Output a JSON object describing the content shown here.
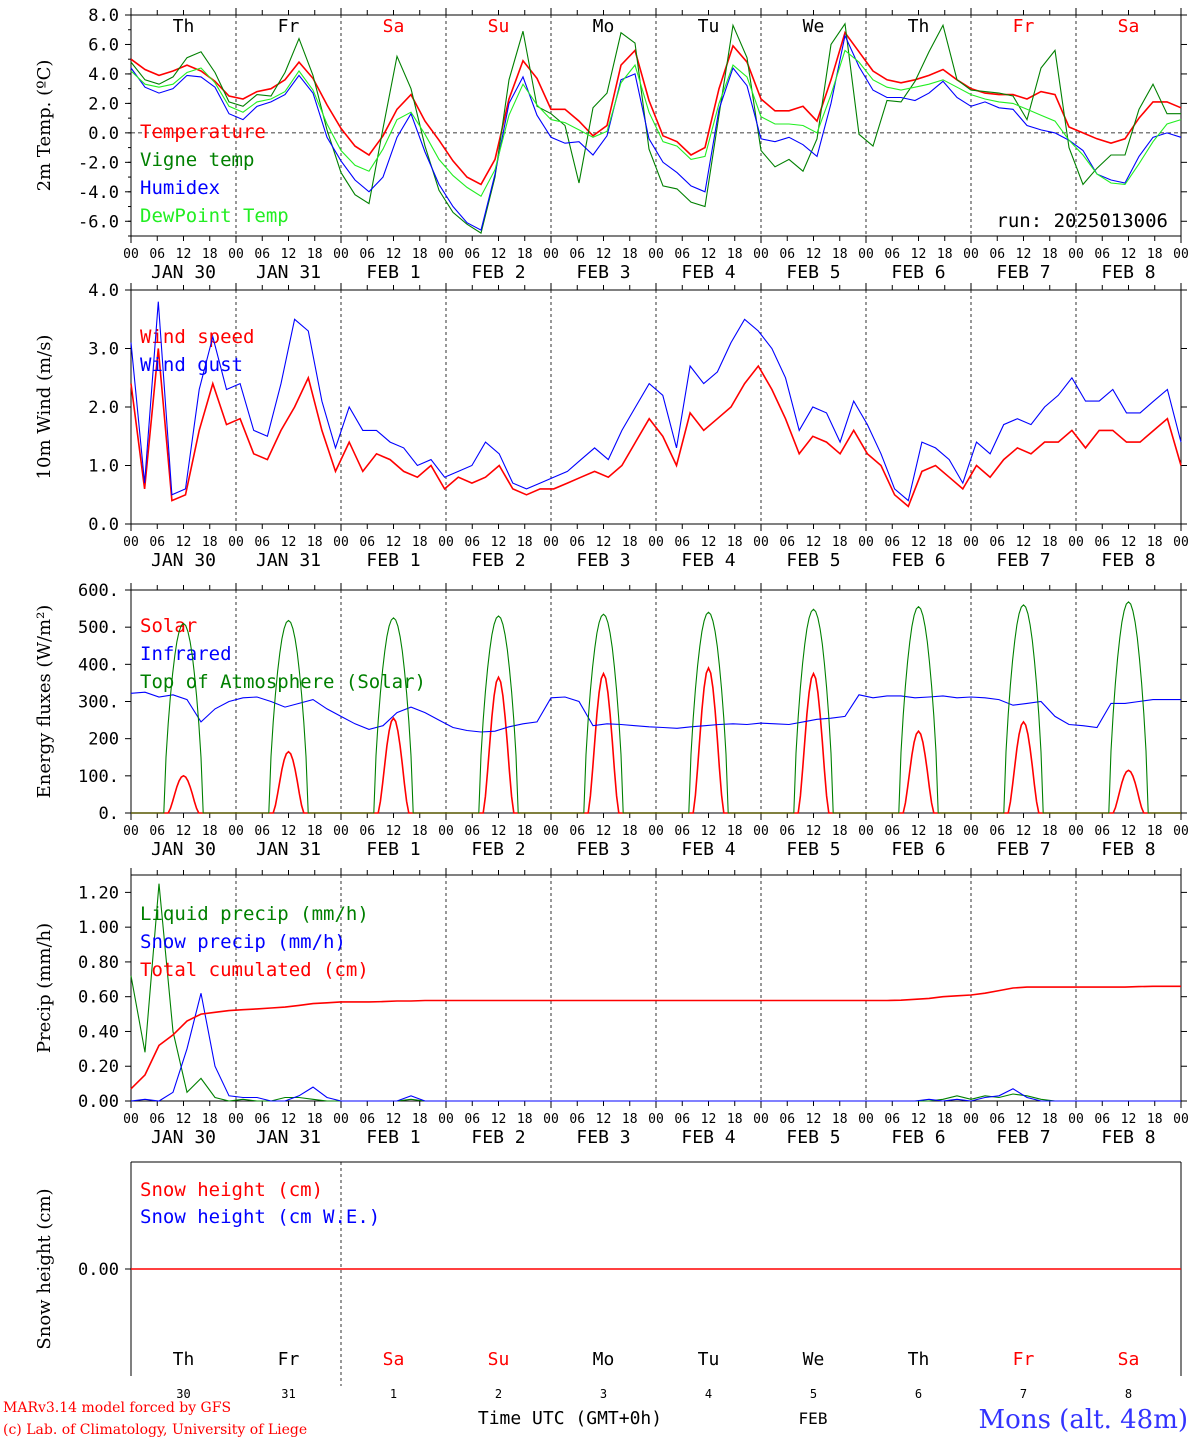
{
  "meta": {
    "run_label": "run: 2025013006",
    "model_line1": "MARv3.14 model forced by GFS",
    "model_line2": "(c) Lab. of Climatology, University of Liege",
    "time_axis_label": "Time UTC (GMT+0h)",
    "month_label": "FEB",
    "location": "Mons (alt. 48m)"
  },
  "colors": {
    "red": "#ff0000",
    "green": "#008000",
    "blue": "#0000ff",
    "lightgreen": "#22ee22",
    "weekend": "#ff0000",
    "weekday": "#000000"
  },
  "days": [
    "Th",
    "Fr",
    "Sa",
    "Su",
    "Mo",
    "Tu",
    "We",
    "Th",
    "Fr",
    "Sa"
  ],
  "weekend_flags": [
    false,
    false,
    true,
    true,
    false,
    false,
    false,
    false,
    true,
    true
  ],
  "weekend_days": [
    "Sa",
    "Su"
  ],
  "date_labels": [
    "JAN 30",
    "JAN 31",
    "FEB 1",
    "FEB 2",
    "FEB 3",
    "FEB 4",
    "FEB 5",
    "FEB 6",
    "FEB 7",
    "FEB 8"
  ],
  "bottom_day_numbers": [
    "30",
    "31",
    "1",
    "2",
    "3",
    "4",
    "5",
    "6",
    "7",
    "8"
  ],
  "hour_ticks": [
    "00",
    "06",
    "12",
    "18"
  ],
  "final_tick": "00",
  "chart_data": [
    {
      "id": "temp",
      "type": "line",
      "ylabel": "2m Temp. (ºC)",
      "ylim": [
        -7,
        8
      ],
      "yticks": [
        "8.0",
        "6.0",
        "4.0",
        "2.0",
        "0.0",
        "-2.0",
        "-4.0",
        "-6.0"
      ],
      "zero_line": true,
      "series": [
        {
          "name": "Temperature",
          "color": "red",
          "y": [
            5.0,
            4.3,
            3.9,
            4.2,
            4.6,
            4.2,
            3.5,
            2.5,
            2.3,
            2.8,
            3.0,
            3.6,
            4.8,
            3.7,
            1.9,
            0.3,
            -0.9,
            -1.5,
            -0.2,
            1.6,
            2.6,
            0.8,
            -0.5,
            -1.9,
            -3.0,
            -3.5,
            -1.8,
            2.3,
            4.9,
            3.7,
            1.6,
            1.6,
            0.8,
            -0.2,
            0.5,
            4.6,
            5.6,
            2.2,
            -0.2,
            -0.6,
            -1.5,
            -1.0,
            3.0,
            5.9,
            4.8,
            2.3,
            1.5,
            1.5,
            1.8,
            0.8,
            3.6,
            6.8,
            5.5,
            4.2,
            3.6,
            3.4,
            3.6,
            3.9,
            4.3,
            3.6,
            3.0,
            2.7,
            2.6,
            2.6,
            2.3,
            2.8,
            2.6,
            0.4,
            0.0,
            -0.4,
            -0.7,
            -0.4,
            1.0,
            2.1,
            2.1,
            1.7
          ]
        },
        {
          "name": "Vigne temp",
          "color": "green",
          "y": [
            4.8,
            3.6,
            3.3,
            3.8,
            5.1,
            5.5,
            4.1,
            2.1,
            1.8,
            2.6,
            2.5,
            4.1,
            6.4,
            3.9,
            0.2,
            -2.7,
            -4.2,
            -4.8,
            0.3,
            5.2,
            3.0,
            -0.9,
            -3.9,
            -5.4,
            -6.2,
            -6.8,
            -3.0,
            3.6,
            6.9,
            1.8,
            1.3,
            0.5,
            -3.4,
            1.7,
            2.7,
            6.8,
            6.1,
            -1.1,
            -3.6,
            -3.8,
            -4.7,
            -5.0,
            1.2,
            7.3,
            5.1,
            -1.2,
            -2.3,
            -1.8,
            -2.6,
            -0.4,
            6.0,
            7.4,
            -0.1,
            -0.9,
            2.2,
            2.1,
            3.5,
            5.5,
            7.3,
            3.6,
            2.9,
            2.8,
            2.7,
            2.5,
            0.9,
            4.4,
            5.6,
            -1.0,
            -3.5,
            -2.4,
            -1.5,
            -1.5,
            1.6,
            3.3,
            1.3,
            1.3
          ]
        },
        {
          "name": "Humidex",
          "color": "blue",
          "y": [
            4.4,
            3.1,
            2.7,
            3.0,
            3.9,
            3.8,
            3.1,
            1.3,
            0.9,
            1.8,
            2.1,
            2.6,
            3.9,
            2.7,
            -0.3,
            -1.9,
            -3.2,
            -4.0,
            -3.0,
            -0.3,
            1.3,
            -1.3,
            -3.5,
            -5.0,
            -6.1,
            -6.6,
            -2.8,
            2.0,
            3.8,
            1.2,
            -0.3,
            -0.7,
            -0.6,
            -1.5,
            -0.2,
            3.6,
            4.0,
            -0.4,
            -2.0,
            -2.7,
            -3.6,
            -4.0,
            1.6,
            4.4,
            3.2,
            -0.4,
            -0.6,
            -0.3,
            -0.8,
            -1.6,
            2.0,
            6.6,
            4.5,
            2.9,
            2.4,
            2.4,
            2.2,
            2.7,
            3.5,
            2.4,
            1.8,
            2.1,
            1.7,
            1.6,
            0.5,
            0.2,
            0.0,
            -0.5,
            -1.2,
            -2.8,
            -3.2,
            -3.4,
            -1.6,
            -0.3,
            0.0,
            -0.3
          ]
        },
        {
          "name": "DewPoint Temp",
          "color": "lightgreen",
          "y": [
            4.2,
            3.3,
            3.1,
            3.3,
            4.1,
            4.4,
            3.4,
            1.8,
            1.4,
            2.1,
            2.3,
            2.8,
            4.2,
            2.9,
            0.6,
            -1.2,
            -2.2,
            -2.6,
            -1.1,
            0.9,
            1.4,
            -0.1,
            -1.8,
            -2.9,
            -3.7,
            -4.3,
            -2.5,
            1.2,
            3.3,
            1.9,
            0.9,
            0.7,
            0.2,
            -0.3,
            0.1,
            3.4,
            4.6,
            1.4,
            -0.6,
            -0.9,
            -1.8,
            -1.6,
            2.0,
            4.6,
            3.8,
            1.1,
            0.6,
            0.6,
            0.5,
            0.0,
            2.6,
            5.6,
            4.8,
            3.6,
            3.1,
            2.9,
            3.1,
            3.3,
            3.6,
            3.1,
            2.6,
            2.3,
            2.1,
            2.0,
            1.6,
            1.2,
            0.8,
            -0.5,
            -1.5,
            -2.8,
            -3.4,
            -3.5,
            -2.1,
            -0.6,
            0.6,
            0.9
          ]
        }
      ]
    },
    {
      "id": "wind",
      "type": "line",
      "ylabel": "10m Wind (m/s)",
      "ylim": [
        0,
        4
      ],
      "yticks": [
        "4.0",
        "3.0",
        "2.0",
        "1.0",
        "0.0"
      ],
      "series": [
        {
          "name": "Wind speed",
          "color": "red",
          "y": [
            2.4,
            0.6,
            3.0,
            0.4,
            0.5,
            1.6,
            2.4,
            1.7,
            1.8,
            1.2,
            1.1,
            1.6,
            2.0,
            2.5,
            1.6,
            0.9,
            1.4,
            0.9,
            1.2,
            1.1,
            0.9,
            0.8,
            1.0,
            0.6,
            0.8,
            0.7,
            0.8,
            1.0,
            0.6,
            0.5,
            0.6,
            0.6,
            0.7,
            0.8,
            0.9,
            0.8,
            1.0,
            1.4,
            1.8,
            1.5,
            1.0,
            1.9,
            1.6,
            1.8,
            2.0,
            2.4,
            2.7,
            2.3,
            1.8,
            1.2,
            1.5,
            1.4,
            1.2,
            1.6,
            1.2,
            1.0,
            0.5,
            0.3,
            0.9,
            1.0,
            0.8,
            0.6,
            1.0,
            0.8,
            1.1,
            1.3,
            1.2,
            1.4,
            1.4,
            1.6,
            1.3,
            1.6,
            1.6,
            1.4,
            1.4,
            1.6,
            1.8,
            1.0
          ]
        },
        {
          "name": "Wind gust",
          "color": "blue",
          "y": [
            3.1,
            0.7,
            3.8,
            0.5,
            0.6,
            2.3,
            3.2,
            2.3,
            2.4,
            1.6,
            1.5,
            2.4,
            3.5,
            3.3,
            2.1,
            1.3,
            2.0,
            1.6,
            1.6,
            1.4,
            1.3,
            1.0,
            1.1,
            0.8,
            0.9,
            1.0,
            1.4,
            1.2,
            0.7,
            0.6,
            0.7,
            0.8,
            0.9,
            1.1,
            1.3,
            1.1,
            1.6,
            2.0,
            2.4,
            2.2,
            1.3,
            2.7,
            2.4,
            2.6,
            3.1,
            3.5,
            3.3,
            3.0,
            2.5,
            1.6,
            2.0,
            1.9,
            1.4,
            2.1,
            1.7,
            1.2,
            0.6,
            0.4,
            1.4,
            1.3,
            1.1,
            0.7,
            1.4,
            1.2,
            1.7,
            1.8,
            1.7,
            2.0,
            2.2,
            2.5,
            2.1,
            2.1,
            2.3,
            1.9,
            1.9,
            2.1,
            2.3,
            1.4
          ]
        }
      ]
    },
    {
      "id": "energy",
      "type": "line",
      "ylabel": "Energy fluxes (W/m²)",
      "ylim": [
        0,
        600
      ],
      "yticks": [
        "600.",
        "500.",
        "400.",
        "300.",
        "200",
        "100.",
        "0."
      ],
      "series": [
        {
          "name": "Solar",
          "color": "red",
          "peaks": [
            100,
            165,
            255,
            365,
            375,
            390,
            375,
            220,
            245,
            115
          ]
        },
        {
          "name": "Infrared",
          "color": "blue",
          "y": [
            322,
            325,
            312,
            318,
            305,
            245,
            280,
            300,
            310,
            312,
            300,
            285,
            295,
            305,
            280,
            260,
            240,
            225,
            235,
            270,
            285,
            270,
            250,
            230,
            222,
            218,
            220,
            232,
            240,
            245,
            310,
            312,
            300,
            235,
            240,
            238,
            235,
            232,
            230,
            228,
            232,
            235,
            238,
            240,
            238,
            242,
            240,
            238,
            245,
            252,
            255,
            260,
            318,
            310,
            315,
            315,
            310,
            312,
            315,
            310,
            312,
            310,
            305,
            290,
            295,
            300,
            260,
            238,
            235,
            230,
            295,
            295,
            300,
            305,
            305,
            305
          ]
        },
        {
          "name": "Top of Atmosphere (Solar)",
          "color": "green",
          "peaks": [
            510,
            518,
            525,
            530,
            535,
            540,
            548,
            555,
            560,
            568
          ]
        }
      ]
    },
    {
      "id": "precip",
      "type": "line",
      "ylabel": "Precip (mm/h)",
      "ylim": [
        0,
        1.3
      ],
      "yticks": [
        "1.20",
        "1.00",
        "0.80",
        "0.60",
        "0.40",
        "0.20",
        "0.00"
      ],
      "series": [
        {
          "name": "Liquid precip (mm/h)",
          "color": "green",
          "y": [
            0.72,
            0.28,
            1.25,
            0.4,
            0.05,
            0.13,
            0.02,
            0.0,
            0.01,
            0.0,
            0.0,
            0.02,
            0.02,
            0.01,
            0.0,
            0.0,
            0.0,
            0.0,
            0.0,
            0.0,
            0.01,
            0.0,
            0.0,
            0.0,
            0.0,
            0.0,
            0.0,
            0.0,
            0.0,
            0.0,
            0.0,
            0.0,
            0.0,
            0.0,
            0.0,
            0.0,
            0.0,
            0.0,
            0.0,
            0.0,
            0.0,
            0.0,
            0.0,
            0.0,
            0.0,
            0.0,
            0.0,
            0.0,
            0.0,
            0.0,
            0.0,
            0.0,
            0.0,
            0.0,
            0.0,
            0.0,
            0.0,
            0.0,
            0.01,
            0.03,
            0.01,
            0.03,
            0.02,
            0.04,
            0.03,
            0.01,
            0.0,
            0.0,
            0.0,
            0.0,
            0.0,
            0.0,
            0.0,
            0.0,
            0.0,
            0.0
          ]
        },
        {
          "name": "Snow precip (mm/h)",
          "color": "blue",
          "y": [
            0.0,
            0.01,
            0.0,
            0.05,
            0.3,
            0.62,
            0.2,
            0.03,
            0.02,
            0.02,
            0.0,
            0.0,
            0.03,
            0.08,
            0.02,
            0.0,
            0.0,
            0.0,
            0.0,
            0.0,
            0.03,
            0.0,
            0.0,
            0.0,
            0.0,
            0.0,
            0.0,
            0.0,
            0.0,
            0.0,
            0.0,
            0.0,
            0.0,
            0.0,
            0.0,
            0.0,
            0.0,
            0.0,
            0.0,
            0.0,
            0.0,
            0.0,
            0.0,
            0.0,
            0.0,
            0.0,
            0.0,
            0.0,
            0.0,
            0.0,
            0.0,
            0.0,
            0.0,
            0.0,
            0.0,
            0.0,
            0.0,
            0.01,
            0.0,
            0.01,
            0.0,
            0.02,
            0.03,
            0.07,
            0.02,
            0.0,
            0.0,
            0.0,
            0.0,
            0.0,
            0.0,
            0.0,
            0.0,
            0.0,
            0.0,
            0.0
          ]
        },
        {
          "name": "Total cumulated (cm)",
          "color": "red",
          "y": [
            0.07,
            0.15,
            0.32,
            0.38,
            0.46,
            0.5,
            0.51,
            0.52,
            0.525,
            0.53,
            0.535,
            0.54,
            0.55,
            0.56,
            0.565,
            0.57,
            0.57,
            0.57,
            0.572,
            0.575,
            0.575,
            0.578,
            0.578,
            0.578,
            0.578,
            0.578,
            0.578,
            0.578,
            0.578,
            0.578,
            0.578,
            0.578,
            0.578,
            0.578,
            0.578,
            0.578,
            0.578,
            0.578,
            0.578,
            0.578,
            0.578,
            0.578,
            0.578,
            0.578,
            0.578,
            0.578,
            0.578,
            0.578,
            0.578,
            0.578,
            0.578,
            0.578,
            0.578,
            0.578,
            0.578,
            0.58,
            0.585,
            0.59,
            0.6,
            0.605,
            0.61,
            0.62,
            0.635,
            0.65,
            0.655,
            0.655,
            0.655,
            0.655,
            0.655,
            0.655,
            0.655,
            0.655,
            0.658,
            0.66,
            0.66,
            0.66
          ]
        }
      ]
    },
    {
      "id": "snow",
      "type": "line",
      "ylabel": "Snow height (cm)",
      "ylim": [
        -1,
        1
      ],
      "yticks": [
        "0.00"
      ],
      "series": [
        {
          "name": "Snow height (cm)",
          "color": "red",
          "y": [
            0,
            0
          ]
        },
        {
          "name": "Snow height (cm W.E.)",
          "color": "blue",
          "y": []
        }
      ]
    }
  ]
}
